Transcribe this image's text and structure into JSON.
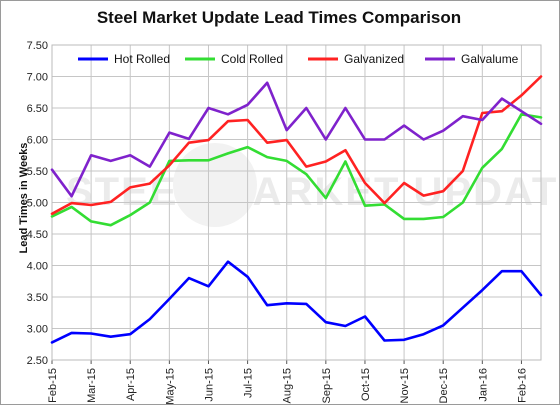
{
  "chart_data": {
    "type": "line",
    "title": "Steel Market Update Lead Times Comparison",
    "xlabel": "",
    "ylabel": "Lead Times in Weeks",
    "watermark": "STEEL MARKET UPDATE",
    "ylim": [
      2.5,
      7.5
    ],
    "yticks": [
      "7.50",
      "7.00",
      "6.50",
      "6.00",
      "5.50",
      "5.00",
      "4.50",
      "4.00",
      "3.50",
      "3.00",
      "2.50"
    ],
    "grid": true,
    "legend": "top",
    "x_labels": [
      "Feb-15",
      "Mar-15",
      "Apr-15",
      "May-15",
      "Jun-15",
      "Jul-15",
      "Aug-15",
      "Sep-15",
      "Oct-15",
      "Nov-15",
      "Dec-15",
      "Jan-16",
      "Feb-16"
    ],
    "points_per_month": 2,
    "series": [
      {
        "name": "Hot Rolled",
        "color": "#0000ff",
        "values": [
          2.78,
          2.93,
          2.92,
          2.87,
          2.91,
          3.15,
          3.47,
          3.8,
          3.67,
          4.06,
          3.82,
          3.37,
          3.4,
          3.39,
          3.1,
          3.04,
          3.19,
          2.81,
          2.82,
          2.91,
          3.05,
          3.33,
          3.61,
          3.91,
          3.91,
          3.53
        ]
      },
      {
        "name": "Cold Rolled",
        "color": "#33dd33",
        "values": [
          4.78,
          4.93,
          4.7,
          4.64,
          4.8,
          5.0,
          5.66,
          5.67,
          5.67,
          5.78,
          5.88,
          5.72,
          5.66,
          5.45,
          5.07,
          5.65,
          4.95,
          4.97,
          4.74,
          4.74,
          4.77,
          5.0,
          5.55,
          5.85,
          6.4,
          6.35
        ]
      },
      {
        "name": "Galvanized",
        "color": "#ff2222",
        "values": [
          4.82,
          4.99,
          4.96,
          5.01,
          5.24,
          5.3,
          5.59,
          5.95,
          5.99,
          6.29,
          6.31,
          5.95,
          5.99,
          5.57,
          5.65,
          5.83,
          5.31,
          4.99,
          5.31,
          5.11,
          5.18,
          5.5,
          6.42,
          6.45,
          6.7,
          7.0
        ]
      },
      {
        "name": "Galvalume",
        "color": "#7f22cc",
        "values": [
          5.52,
          5.1,
          5.75,
          5.66,
          5.75,
          5.57,
          6.11,
          6.01,
          6.5,
          6.4,
          6.55,
          6.9,
          6.15,
          6.5,
          6.0,
          6.5,
          6.0,
          6.0,
          6.22,
          6.0,
          6.14,
          6.37,
          6.31,
          6.65,
          6.45,
          6.25
        ]
      }
    ]
  }
}
